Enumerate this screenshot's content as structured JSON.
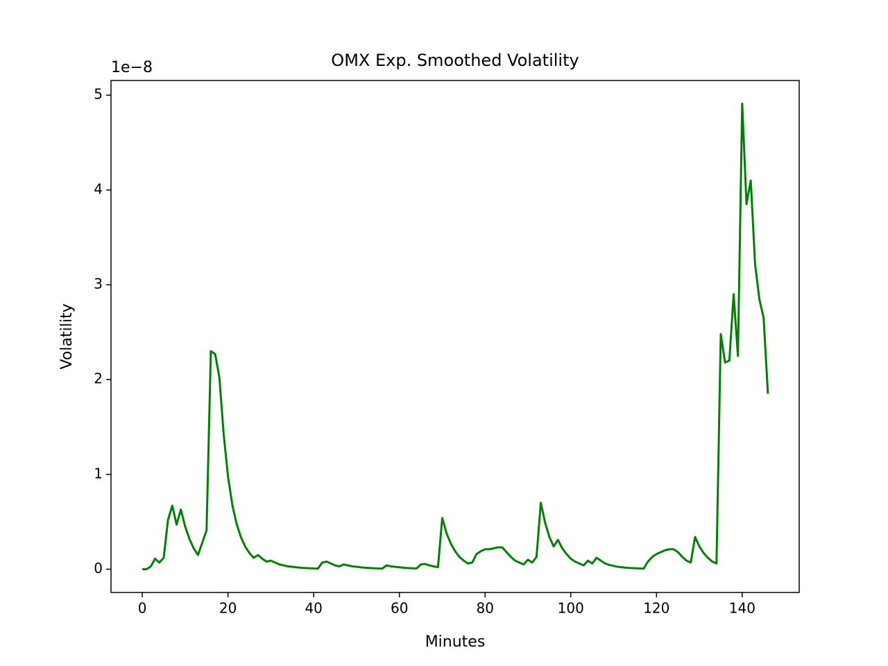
{
  "chart_data": {
    "type": "line",
    "title": "OMX Exp. Smoothed Volatility",
    "x_label": "Minutes",
    "y_label": "Volatility",
    "y_offset_label": "1e−8",
    "color": "#008000",
    "x": [
      0,
      1,
      2,
      3,
      4,
      5,
      6,
      7,
      8,
      9,
      10,
      11,
      12,
      13,
      14,
      15,
      16,
      17,
      18,
      19,
      20,
      21,
      22,
      23,
      24,
      25,
      26,
      27,
      28,
      29,
      30,
      31,
      32,
      33,
      34,
      35,
      36,
      37,
      38,
      39,
      40,
      41,
      42,
      43,
      44,
      45,
      46,
      47,
      48,
      49,
      50,
      51,
      52,
      53,
      54,
      55,
      56,
      57,
      58,
      59,
      60,
      61,
      62,
      63,
      64,
      65,
      66,
      67,
      68,
      69,
      70,
      71,
      72,
      73,
      74,
      75,
      76,
      77,
      78,
      79,
      80,
      81,
      82,
      83,
      84,
      85,
      86,
      87,
      88,
      89,
      90,
      91,
      92,
      93,
      94,
      95,
      96,
      97,
      98,
      99,
      100,
      101,
      102,
      103,
      104,
      105,
      106,
      107,
      108,
      109,
      110,
      111,
      112,
      113,
      114,
      115,
      116,
      117,
      118,
      119,
      120,
      121,
      122,
      123,
      124,
      125,
      126,
      127,
      128,
      129,
      130,
      131,
      132,
      133,
      134,
      135,
      136,
      137,
      138,
      139,
      140,
      141,
      142,
      143,
      144,
      145,
      146
    ],
    "values": [
      0,
      0,
      0.03,
      0.11,
      0.07,
      0.12,
      0.52,
      0.67,
      0.47,
      0.63,
      0.45,
      0.32,
      0.22,
      0.15,
      0.28,
      0.41,
      2.3,
      2.27,
      2.02,
      1.42,
      0.98,
      0.68,
      0.48,
      0.34,
      0.24,
      0.17,
      0.12,
      0.15,
      0.11,
      0.08,
      0.09,
      0.07,
      0.05,
      0.04,
      0.03,
      0.025,
      0.02,
      0.015,
      0.012,
      0.01,
      0.008,
      0.006,
      0.07,
      0.08,
      0.06,
      0.04,
      0.03,
      0.05,
      0.04,
      0.03,
      0.025,
      0.02,
      0.015,
      0.012,
      0.01,
      0.008,
      0.006,
      0.04,
      0.03,
      0.025,
      0.02,
      0.015,
      0.012,
      0.01,
      0.008,
      0.05,
      0.055,
      0.04,
      0.03,
      0.02,
      0.54,
      0.38,
      0.27,
      0.19,
      0.13,
      0.09,
      0.06,
      0.07,
      0.16,
      0.19,
      0.21,
      0.21,
      0.22,
      0.23,
      0.23,
      0.18,
      0.13,
      0.09,
      0.07,
      0.05,
      0.1,
      0.07,
      0.13,
      0.7,
      0.49,
      0.34,
      0.24,
      0.31,
      0.22,
      0.16,
      0.11,
      0.08,
      0.06,
      0.04,
      0.09,
      0.06,
      0.12,
      0.09,
      0.06,
      0.045,
      0.035,
      0.025,
      0.02,
      0.015,
      0.012,
      0.01,
      0.008,
      0.006,
      0.08,
      0.13,
      0.16,
      0.18,
      0.2,
      0.21,
      0.21,
      0.18,
      0.13,
      0.09,
      0.07,
      0.34,
      0.24,
      0.17,
      0.12,
      0.08,
      0.06,
      2.48,
      2.18,
      2.2,
      2.9,
      2.25,
      4.91,
      3.85,
      4.1,
      3.22,
      2.85,
      2.65,
      1.85
    ],
    "xlim": [
      -7.3,
      153.3
    ],
    "ylim": [
      -0.2455,
      5.155
    ],
    "xticks": [
      0,
      20,
      40,
      60,
      80,
      100,
      120,
      140
    ],
    "yticks": [
      0,
      1,
      2,
      3,
      4,
      5
    ]
  }
}
